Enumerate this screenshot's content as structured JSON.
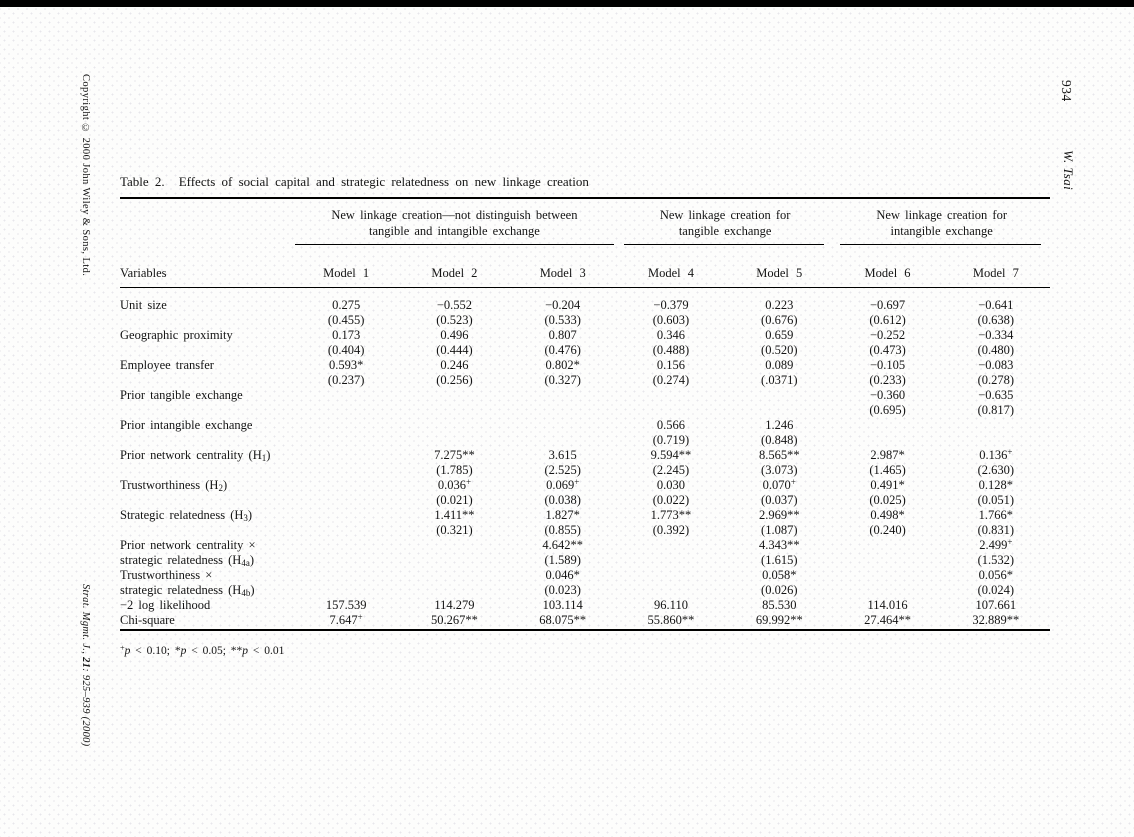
{
  "page": {
    "left_margin_text": "Copyright © 2000 John Wiley & Sons, Ltd.",
    "bottom_left_margin_text": "Strat. Mgmt. J., ={21}: 925–939 (2000)",
    "page_number": "934",
    "running_head": "W. Tsai"
  },
  "table": {
    "title_label": "Table 2.",
    "title_caption": "Effects of social capital and strategic relatedness on new linkage creation",
    "col_groups": [
      {
        "line1": "New linkage creation—not distinguish between",
        "line2": "tangible and intangible exchange"
      },
      {
        "line1": "New linkage creation for",
        "line2": "tangible exchange"
      },
      {
        "line1": "New linkage creation for",
        "line2": "intangible exchange"
      }
    ],
    "header": {
      "variables_label": "Variables",
      "models": [
        "Model 1",
        "Model 2",
        "Model 3",
        "Model 4",
        "Model 5",
        "Model 6",
        "Model 7"
      ]
    },
    "rows": [
      {
        "label": [
          "Unit size"
        ],
        "cells": [
          [
            "0.275",
            "(0.455)"
          ],
          [
            "−0.552",
            "(0.523)"
          ],
          [
            "−0.204",
            "(0.533)"
          ],
          [
            "−0.379",
            "(0.603)"
          ],
          [
            "0.223",
            "(0.676)"
          ],
          [
            "−0.697",
            "(0.612)"
          ],
          [
            "−0.641",
            "(0.638)"
          ]
        ]
      },
      {
        "label": [
          "Geographic proximity"
        ],
        "cells": [
          [
            "0.173",
            "(0.404)"
          ],
          [
            "0.496",
            "(0.444)"
          ],
          [
            "0.807",
            "(0.476)"
          ],
          [
            "0.346",
            "(0.488)"
          ],
          [
            "0.659",
            "(0.520)"
          ],
          [
            "−0.252",
            "(0.473)"
          ],
          [
            "−0.334",
            "(0.480)"
          ]
        ]
      },
      {
        "label": [
          "Employee transfer"
        ],
        "cells": [
          [
            "0.593*",
            "(0.237)"
          ],
          [
            "0.246",
            "(0.256)"
          ],
          [
            "0.802*",
            "(0.327)"
          ],
          [
            "0.156",
            "(0.274)"
          ],
          [
            "0.089",
            "(.0371)"
          ],
          [
            "−0.105",
            "(0.233)"
          ],
          [
            "−0.083",
            "(0.278)"
          ]
        ]
      },
      {
        "label": [
          "Prior tangible exchange"
        ],
        "cells": [
          [
            "",
            ""
          ],
          [
            "",
            ""
          ],
          [
            "",
            ""
          ],
          [
            "",
            ""
          ],
          [
            "",
            ""
          ],
          [
            "−0.360",
            "(0.695)"
          ],
          [
            "−0.635",
            "(0.817)"
          ]
        ]
      },
      {
        "label": [
          "Prior intangible exchange"
        ],
        "cells": [
          [
            "",
            ""
          ],
          [
            "",
            ""
          ],
          [
            "",
            ""
          ],
          [
            "0.566",
            "(0.719)"
          ],
          [
            "1.246",
            "(0.848)"
          ],
          [
            "",
            ""
          ],
          [
            "",
            ""
          ]
        ]
      },
      {
        "label": [
          "Prior network centrality (H_{1})"
        ],
        "cells": [
          [
            "",
            ""
          ],
          [
            "7.275**",
            "(1.785)"
          ],
          [
            "3.615",
            "(2.525)"
          ],
          [
            "9.594**",
            "(2.245)"
          ],
          [
            "8.565**",
            "(3.073)"
          ],
          [
            "2.987*",
            "(1.465)"
          ],
          [
            "0.136^{+}",
            "(2.630)"
          ]
        ]
      },
      {
        "label": [
          "Trustworthiness (H_{2})"
        ],
        "cells": [
          [
            "",
            ""
          ],
          [
            "0.036^{+}",
            "(0.021)"
          ],
          [
            "0.069^{+}",
            "(0.038)"
          ],
          [
            "0.030",
            "(0.022)"
          ],
          [
            "0.070^{+}",
            "(0.037)"
          ],
          [
            "0.491*",
            "(0.025)"
          ],
          [
            "0.128*",
            "(0.051)"
          ]
        ]
      },
      {
        "label": [
          "Strategic relatedness (H_{3})"
        ],
        "cells": [
          [
            "",
            ""
          ],
          [
            "1.411**",
            "(0.321)"
          ],
          [
            "1.827*",
            "(0.855)"
          ],
          [
            "1.773**",
            "(0.392)"
          ],
          [
            "2.969**",
            "(1.087)"
          ],
          [
            "0.498*",
            "(0.240)"
          ],
          [
            "1.766*",
            "(0.831)"
          ]
        ]
      },
      {
        "label": [
          "Prior network centrality ×",
          "strategic relatedness (H_{4a})"
        ],
        "cells": [
          [
            "",
            ""
          ],
          [
            "",
            ""
          ],
          [
            "4.642**",
            "(1.589)"
          ],
          [
            "",
            ""
          ],
          [
            "4.343**",
            "(1.615)"
          ],
          [
            "",
            ""
          ],
          [
            "2.499^{+}",
            "(1.532)"
          ]
        ]
      },
      {
        "label": [
          "Trustworthiness ×",
          "strategic relatedness (H_{4b})"
        ],
        "cells": [
          [
            "",
            ""
          ],
          [
            "",
            ""
          ],
          [
            "0.046*",
            "(0.023)"
          ],
          [
            "",
            ""
          ],
          [
            "0.058*",
            "(0.026)"
          ],
          [
            "",
            ""
          ],
          [
            "0.056*",
            "(0.024)"
          ]
        ]
      },
      {
        "label": [
          "−2 log likelihood"
        ],
        "cells": [
          [
            "157.539"
          ],
          [
            "114.279"
          ],
          [
            "103.114"
          ],
          [
            "96.110"
          ],
          [
            "85.530"
          ],
          [
            "114.016"
          ],
          [
            "107.661"
          ]
        ]
      },
      {
        "label": [
          "Chi-square"
        ],
        "cells": [
          [
            "7.647^{+}"
          ],
          [
            "50.267**"
          ],
          [
            "68.075**"
          ],
          [
            "55.860**"
          ],
          [
            "69.992**"
          ],
          [
            "27.464**"
          ],
          [
            "32.889**"
          ]
        ]
      }
    ],
    "footnote": "^{+}~{p} < 0.10; *~{p} < 0.05; **~{p} < 0.01"
  }
}
